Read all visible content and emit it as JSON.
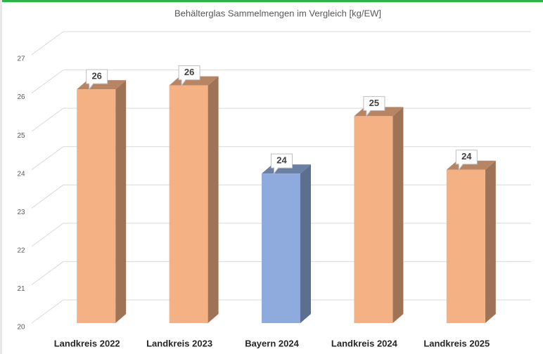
{
  "chart_data": {
    "type": "bar3d",
    "title": "Behälterglas Sammelmengen im Vergleich [kg/EW]",
    "categories": [
      "Landkreis 2022",
      "Landkreis 2023",
      "Bayern 2024",
      "Landkreis 2024",
      "Landkreis 2025"
    ],
    "values": [
      26.1,
      26.2,
      23.9,
      25.4,
      24.0
    ],
    "value_labels": [
      "26",
      "26",
      "24",
      "25",
      "24"
    ],
    "colors": [
      "#f4b183",
      "#f4b183",
      "#8faadc",
      "#f4b183",
      "#f4b183"
    ],
    "ylim": [
      20,
      27
    ],
    "yticks": [
      20,
      21,
      22,
      23,
      24,
      25,
      26,
      27
    ],
    "grid": true
  }
}
